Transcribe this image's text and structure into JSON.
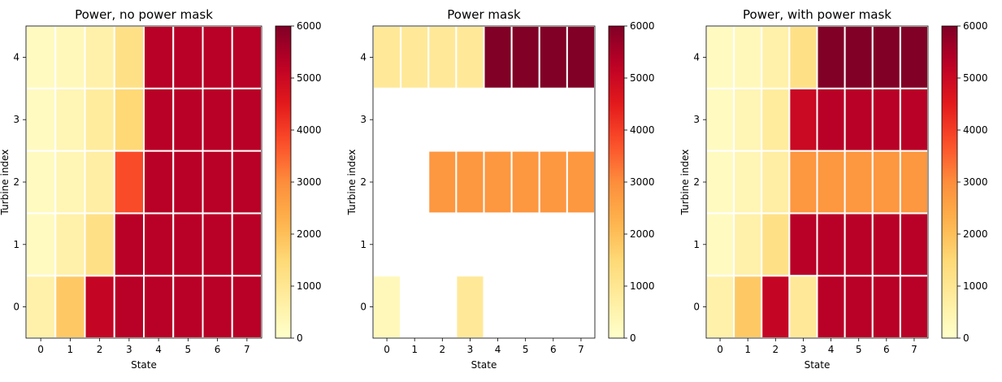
{
  "chart_data": [
    {
      "type": "heatmap",
      "title": "Power, no power mask",
      "xlabel": "State",
      "ylabel": "Turbine index",
      "x": [
        0,
        1,
        2,
        3,
        4,
        5,
        6,
        7
      ],
      "y": [
        0,
        1,
        2,
        3,
        4
      ],
      "values": [
        [
          600,
          1800,
          5100,
          5300,
          5300,
          5300,
          5300,
          5300
        ],
        [
          200,
          600,
          1200,
          5300,
          5300,
          5300,
          5300,
          5300
        ],
        [
          200,
          400,
          700,
          3800,
          5300,
          5300,
          5300,
          5300
        ],
        [
          200,
          400,
          800,
          1500,
          5300,
          5300,
          5300,
          5300
        ],
        [
          200,
          300,
          600,
          1200,
          5300,
          5300,
          5300,
          5300
        ]
      ],
      "colorbar": {
        "min": 0,
        "max": 6000,
        "ticks": [
          "0",
          "1000",
          "2000",
          "3000",
          "4000",
          "5000",
          "6000"
        ]
      }
    },
    {
      "type": "heatmap",
      "title": "Power mask",
      "xlabel": "State",
      "ylabel": "Turbine index",
      "x": [
        0,
        1,
        2,
        3,
        4,
        5,
        6,
        7
      ],
      "y": [
        0,
        1,
        2,
        3,
        4
      ],
      "values": [
        [
          300,
          null,
          null,
          900,
          null,
          null,
          null,
          null
        ],
        [
          null,
          null,
          null,
          null,
          null,
          null,
          null,
          null
        ],
        [
          null,
          null,
          2800,
          2800,
          2800,
          2800,
          2800,
          2800
        ],
        [
          null,
          null,
          null,
          null,
          null,
          null,
          null,
          null
        ],
        [
          900,
          900,
          900,
          900,
          6000,
          6000,
          6000,
          6000
        ]
      ],
      "colorbar": {
        "min": 0,
        "max": 6000,
        "ticks": [
          "0",
          "1000",
          "2000",
          "3000",
          "4000",
          "5000",
          "6000"
        ]
      }
    },
    {
      "type": "heatmap",
      "title": "Power, with power mask",
      "xlabel": "State",
      "ylabel": "Turbine index",
      "x": [
        0,
        1,
        2,
        3,
        4,
        5,
        6,
        7
      ],
      "y": [
        0,
        1,
        2,
        3,
        4
      ],
      "values": [
        [
          600,
          1800,
          5100,
          900,
          5300,
          5300,
          5300,
          5300
        ],
        [
          200,
          600,
          1200,
          5300,
          5300,
          5300,
          5300,
          5300
        ],
        [
          200,
          400,
          700,
          2800,
          2800,
          2800,
          2800,
          2800
        ],
        [
          200,
          400,
          800,
          5000,
          5300,
          5300,
          5300,
          5300
        ],
        [
          200,
          300,
          600,
          1200,
          6000,
          6000,
          6000,
          6000
        ]
      ],
      "colorbar": {
        "min": 0,
        "max": 6000,
        "ticks": [
          "0",
          "1000",
          "2000",
          "3000",
          "4000",
          "5000",
          "6000"
        ]
      }
    }
  ]
}
